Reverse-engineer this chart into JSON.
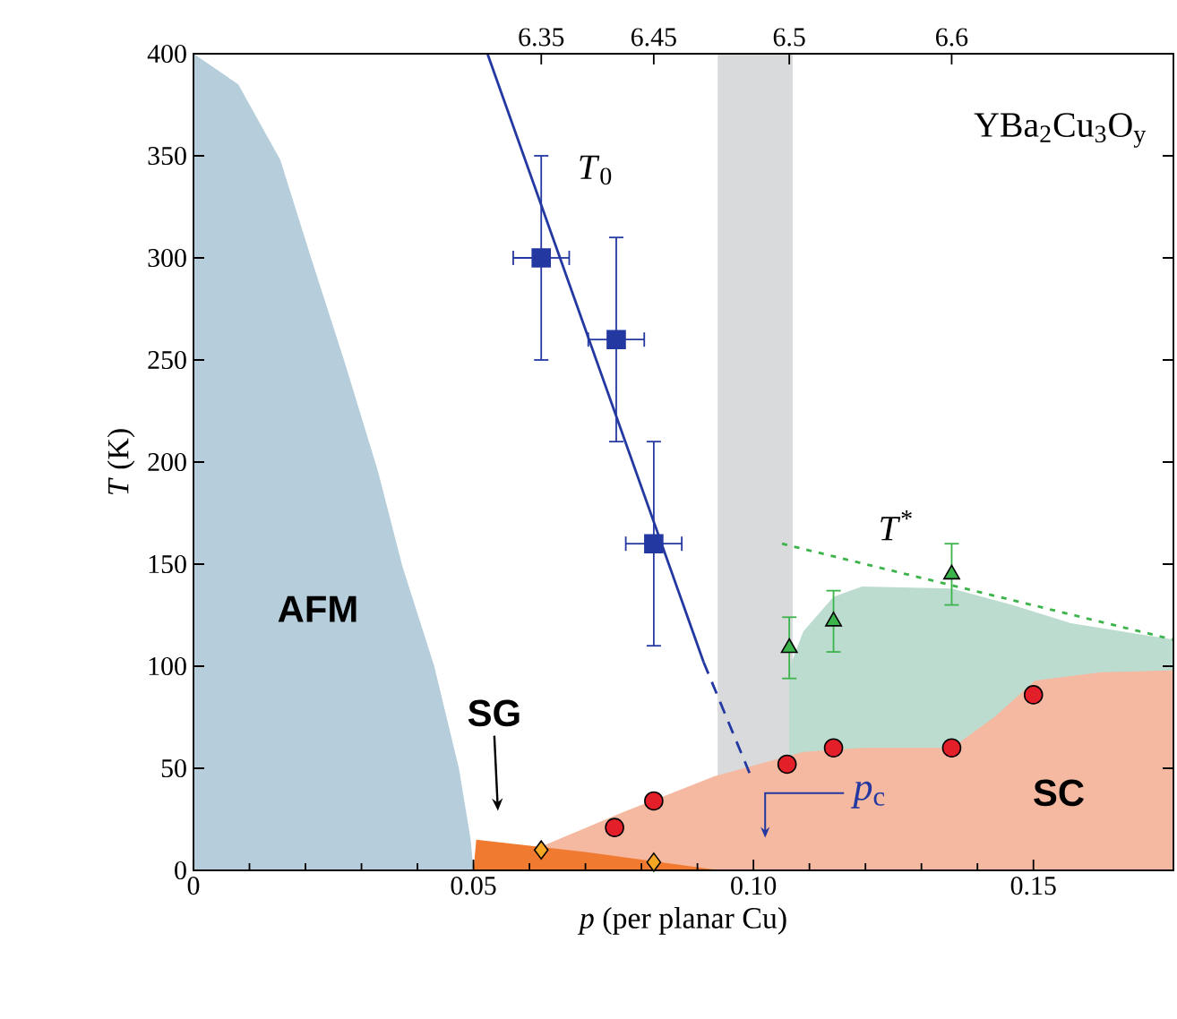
{
  "chart_data": {
    "type": "scatter",
    "xlabel": "*p* (per planar Cu)",
    "ylabel": "*T* (K)",
    "xlim": [
      0,
      0.175
    ],
    "ylim": [
      0,
      400
    ],
    "xticks": [
      0,
      0.05,
      {
        "value": 0.1,
        "label": "0.10"
      },
      0.15
    ],
    "yticks": [
      0,
      50,
      100,
      150,
      200,
      250,
      300,
      350,
      400
    ],
    "bands": [
      {
        "axis": "x",
        "from": 0.0936,
        "to": 0.107,
        "color": "#d9dadc"
      }
    ],
    "series": [
      {
        "type": "area",
        "color": "#b6cedb",
        "x": [
          0,
          0.008,
          0.0155,
          0.021,
          0.0271,
          0.033,
          0.0373,
          0.043,
          0.0474,
          0.0495,
          0.05
        ],
        "values": [
          400,
          385,
          348,
          300,
          248,
          195,
          149,
          100,
          50,
          15,
          0
        ]
      },
      {
        "type": "area",
        "color": "#bcdcd0",
        "x": [
          0.1064,
          0.1089,
          0.1143,
          0.1194,
          0.1354,
          0.1462,
          0.1567,
          0.175
        ],
        "values": [
          99,
          117,
          134,
          139,
          138,
          130,
          121,
          113
        ]
      },
      {
        "type": "area",
        "color": "#f5b8a0",
        "x": [
          0.052,
          0.0589,
          0.0771,
          0.093,
          0.1089,
          0.1194,
          0.1354,
          0.143,
          0.1503,
          0.1621,
          0.175
        ],
        "values": [
          0,
          null,
          29,
          46,
          58,
          60,
          60,
          75,
          93,
          97,
          98
        ]
      },
      {
        "type": "area",
        "color": "#f07a30",
        "x": [
          0.05,
          0.0505,
          0.07,
          0.094
        ],
        "values": [
          0,
          15,
          9,
          0
        ]
      },
      {
        "type": "line",
        "color": "#2338a0",
        "line_style": "solid",
        "x": [
          0.0525,
          0.0911
        ],
        "values": [
          400,
          102
        ]
      },
      {
        "type": "line",
        "color": "#2338a0",
        "line_style": "dashed",
        "x": [
          0.0911,
          0.0994
        ],
        "values": [
          102,
          47
        ]
      },
      {
        "type": "line",
        "color": "#3cb44b",
        "line_style": "dotted",
        "x": [
          0.1051,
          0.175
        ],
        "values": [
          160,
          113
        ]
      },
      {
        "color": "#2338a0",
        "marker": "square",
        "x": [
          0.0621,
          0.0755,
          0.0822
        ],
        "values": [
          300,
          260,
          160
        ],
        "errors": [
          50,
          50,
          50
        ],
        "xerrors": [
          0.005,
          0.005,
          0.005
        ]
      },
      {
        "color": "#3cb44b",
        "marker": "triangle",
        "x": [
          0.1064,
          0.1143,
          0.1354
        ],
        "values": [
          109,
          122,
          145
        ],
        "errors": [
          15,
          15,
          15
        ]
      },
      {
        "color": "#e3202a",
        "marker": "circle",
        "x": [
          0.0752,
          0.0822,
          0.106,
          0.1143,
          0.1354,
          0.15
        ],
        "values": [
          21,
          34,
          52,
          60,
          60,
          86
        ]
      },
      {
        "color": "#f5a623",
        "marker": "diamond",
        "x": [
          0.0621,
          0.0822
        ],
        "values": [
          10,
          4
        ]
      }
    ],
    "annotations": [
      "AFM",
      "SG",
      "SC",
      "*T*$_{0}$",
      "*T*$^{*}$",
      "*p*$_{c}$",
      "YBa$_{2}$Cu$_{3}$O$_{y}$",
      "6.35",
      "6.45",
      "6.5",
      "6.6"
    ]
  }
}
